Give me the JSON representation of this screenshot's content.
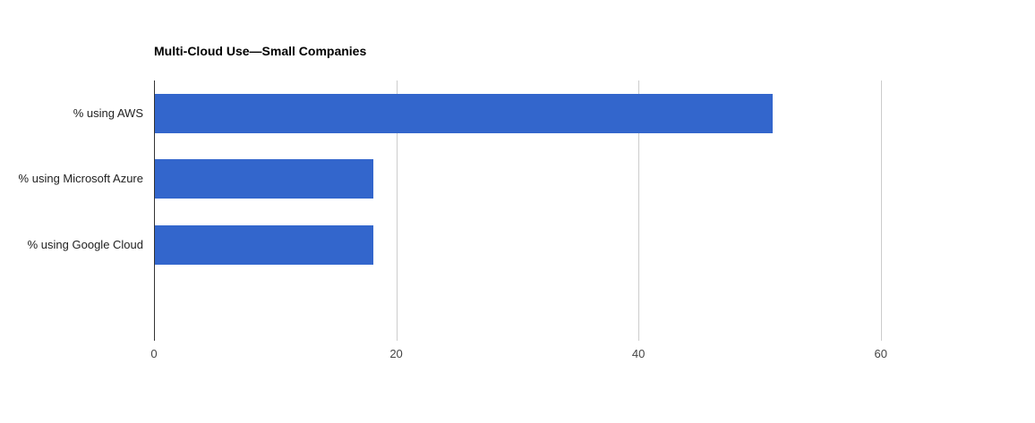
{
  "chart_data": {
    "type": "bar",
    "orientation": "horizontal",
    "title": "Multi-Cloud Use—Small Companies",
    "categories": [
      "% using AWS",
      "% using Microsoft Azure",
      "% using Google Cloud"
    ],
    "values": [
      51,
      18,
      18
    ],
    "xlabel": "",
    "ylabel": "",
    "xlim": [
      0,
      70
    ],
    "xticks": [
      0,
      20,
      40,
      60
    ],
    "grid": true,
    "legend": "none",
    "colors": {
      "bar": "#3366cc",
      "gridline": "#cccccc",
      "baseline": "#333333",
      "tick_label": "#444444",
      "category_label": "#222222",
      "title": "#000000",
      "background": "#ffffff"
    }
  }
}
